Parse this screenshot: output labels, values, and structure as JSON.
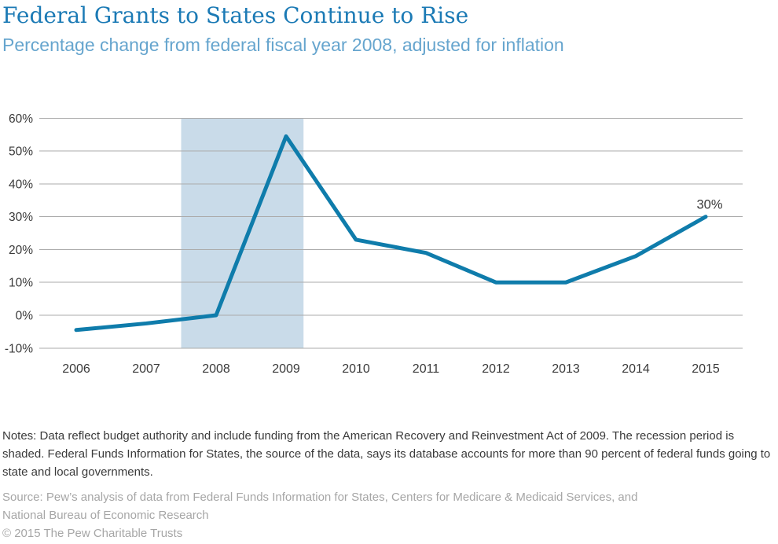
{
  "header": {
    "title": "Federal Grants to States Continue to Rise",
    "subtitle": "Percentage change from federal fiscal year 2008, adjusted for inflation"
  },
  "chart_data": {
    "type": "line",
    "title": "Federal Grants to States Continue to Rise",
    "subtitle": "Percentage change from federal fiscal year 2008, adjusted for inflation",
    "x": [
      2006,
      2007,
      2008,
      2009,
      2010,
      2011,
      2012,
      2013,
      2014,
      2015
    ],
    "values": [
      -4.5,
      -2.5,
      0,
      54.5,
      23,
      19,
      10,
      10,
      18,
      30
    ],
    "xlabel": "",
    "ylabel": "",
    "ylim": [
      -10,
      60
    ],
    "yticks": [
      60,
      50,
      40,
      30,
      20,
      10,
      0,
      -10
    ],
    "ytick_suffix": "%",
    "grid": true,
    "legend": "none",
    "shaded_region": {
      "x_start": 2007.5,
      "x_end": 2009.25
    },
    "annotations": [
      {
        "text": "30%",
        "x": 2015,
        "y": 30
      }
    ],
    "colors": {
      "line": "#0f7cab",
      "band": "#c9dbe9",
      "grid": "#ababab",
      "axis_text": "#3a3a3a",
      "annotation_text": "#3a3a3a",
      "title": "#1b7ab5",
      "subtitle": "#66a5ce"
    }
  },
  "notes": "Notes: Data reflect budget authority and include funding from the American Recovery and Reinvestment Act of 2009. The recession period is shaded. Federal Funds Information for States, the source of the data, says its database accounts for more than 90 percent of federal funds going to state and local governments.",
  "source": {
    "line1": "Source: Pew’s analysis of data from Federal Funds Information for States, Centers for Medicare & Medicaid Services, and",
    "line2": "National Bureau of Economic Research"
  },
  "copyright": "© 2015 The Pew Charitable Trusts"
}
